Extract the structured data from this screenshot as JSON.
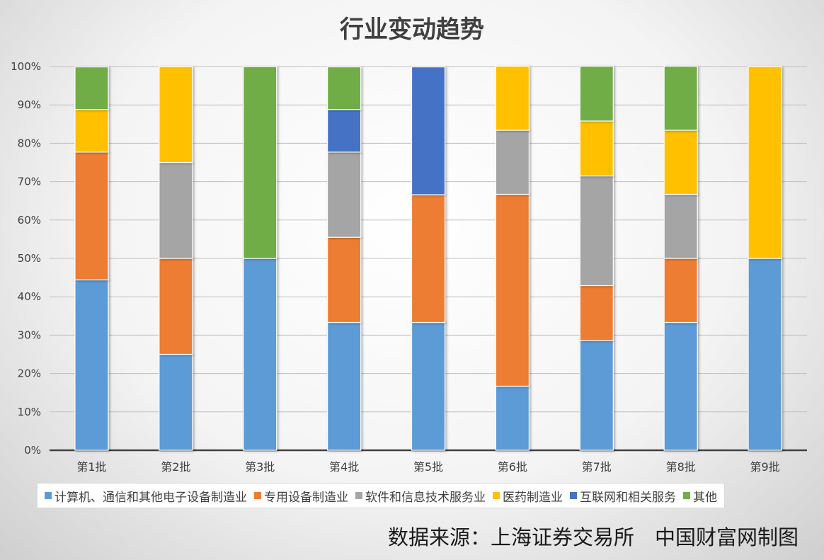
{
  "chart_data": {
    "type": "bar",
    "stacked": true,
    "normalized": true,
    "title": "行业变动趋势",
    "categories": [
      "第1批",
      "第2批",
      "第3批",
      "第4批",
      "第5批",
      "第6批",
      "第7批",
      "第8批",
      "第9批"
    ],
    "ylim": [
      0,
      100
    ],
    "yticks": [
      "0%",
      "10%",
      "20%",
      "30%",
      "40%",
      "50%",
      "60%",
      "70%",
      "80%",
      "90%",
      "100%"
    ],
    "grid": true,
    "legend_position": "bottom",
    "series": [
      {
        "name": "计算机、通信和其他电子设备制造业",
        "color": "#5b9bd5",
        "values": [
          44.4,
          25,
          50,
          33.3,
          33.3,
          16.7,
          28.6,
          33.3,
          50
        ]
      },
      {
        "name": "专用设备制造业",
        "color": "#ed7d31",
        "values": [
          33.3,
          25,
          0,
          22.2,
          33.3,
          50,
          14.3,
          16.7,
          0
        ]
      },
      {
        "name": "软件和信息技术服务业",
        "color": "#a5a5a5",
        "values": [
          0,
          25,
          0,
          22.2,
          0,
          16.7,
          28.6,
          16.7,
          0
        ]
      },
      {
        "name": "医药制造业",
        "color": "#ffc000",
        "values": [
          11.1,
          25,
          0,
          0,
          0,
          16.7,
          14.3,
          16.7,
          50
        ]
      },
      {
        "name": "互联网和相关服务",
        "color": "#4472c4",
        "values": [
          0,
          0,
          0,
          11.1,
          33.3,
          0,
          0,
          0,
          0
        ]
      },
      {
        "name": "其他",
        "color": "#70ad47",
        "values": [
          11.1,
          0,
          50,
          11.1,
          0,
          0,
          14.3,
          16.7,
          0
        ]
      }
    ]
  },
  "source_text": "数据来源：上海证券交易所　中国财富网制图"
}
